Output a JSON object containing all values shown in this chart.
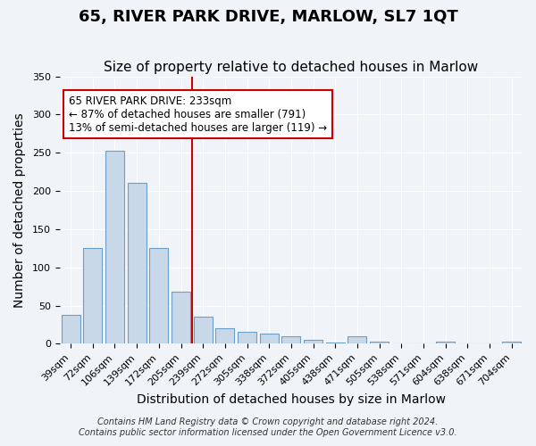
{
  "title": "65, RIVER PARK DRIVE, MARLOW, SL7 1QT",
  "subtitle": "Size of property relative to detached houses in Marlow",
  "xlabel": "Distribution of detached houses by size in Marlow",
  "ylabel": "Number of detached properties",
  "bar_labels": [
    "39sqm",
    "72sqm",
    "106sqm",
    "139sqm",
    "172sqm",
    "205sqm",
    "239sqm",
    "272sqm",
    "305sqm",
    "338sqm",
    "372sqm",
    "405sqm",
    "438sqm",
    "471sqm",
    "505sqm",
    "538sqm",
    "571sqm",
    "604sqm",
    "638sqm",
    "671sqm",
    "704sqm"
  ],
  "bar_heights": [
    38,
    125,
    252,
    211,
    125,
    68,
    35,
    20,
    16,
    13,
    10,
    5,
    2,
    10,
    3,
    0,
    0,
    3,
    0,
    0,
    3
  ],
  "bar_color": "#c8d8e8",
  "bar_edge_color": "#6b9ec8",
  "property_line_x": 6,
  "property_line_label": "65 RIVER PARK DRIVE: 233sqm",
  "annotation_line1": "← 87% of detached houses are smaller (791)",
  "annotation_line2": "13% of semi-detached houses are larger (119) →",
  "annotation_box_color": "#ffffff",
  "annotation_box_edge_color": "#cc0000",
  "vline_color": "#cc0000",
  "ylim": [
    0,
    350
  ],
  "yticks": [
    0,
    50,
    100,
    150,
    200,
    250,
    300,
    350
  ],
  "footer1": "Contains HM Land Registry data © Crown copyright and database right 2024.",
  "footer2": "Contains public sector information licensed under the Open Government Licence v3.0.",
  "background_color": "#f0f4f8",
  "plot_background_color": "#f0f4f8",
  "title_fontsize": 13,
  "subtitle_fontsize": 11,
  "axis_label_fontsize": 10,
  "tick_fontsize": 8,
  "footer_fontsize": 7
}
